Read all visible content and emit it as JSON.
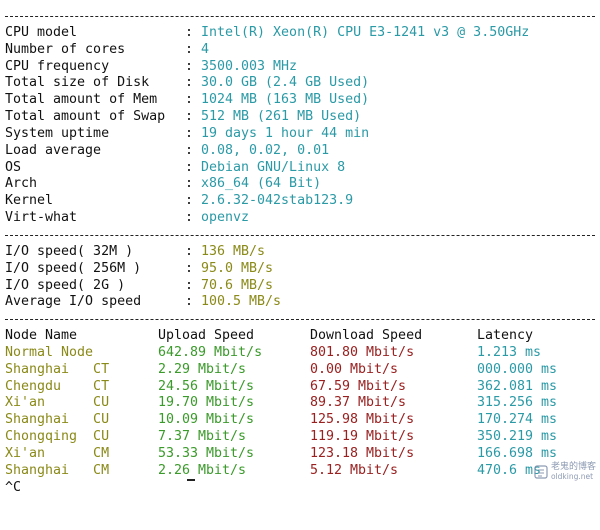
{
  "system_info": [
    {
      "key": "CPU model",
      "value": "Intel(R) Xeon(R) CPU E3-1241 v3 @ 3.50GHz"
    },
    {
      "key": "Number of cores",
      "value": "4"
    },
    {
      "key": "CPU frequency",
      "value": "3500.003 MHz"
    },
    {
      "key": "Total size of Disk",
      "value": "30.0 GB (2.4 GB Used)"
    },
    {
      "key": "Total amount of Mem",
      "value": "1024 MB (163 MB Used)"
    },
    {
      "key": "Total amount of Swap",
      "value": "512 MB (261 MB Used)"
    },
    {
      "key": "System uptime",
      "value": "19 days 1 hour 44 min"
    },
    {
      "key": "Load average",
      "value": "0.08, 0.02, 0.01"
    },
    {
      "key": "OS",
      "value": "Debian GNU/Linux 8"
    },
    {
      "key": "Arch",
      "value": "x86_64 (64 Bit)"
    },
    {
      "key": "Kernel",
      "value": "2.6.32-042stab123.9"
    },
    {
      "key": "Virt-what",
      "value": "openvz"
    }
  ],
  "io_speed": [
    {
      "key": "I/O speed( 32M )",
      "value": "136 MB/s"
    },
    {
      "key": "I/O speed( 256M )",
      "value": "95.0 MB/s"
    },
    {
      "key": "I/O speed( 2G )",
      "value": "70.6 MB/s"
    },
    {
      "key": "Average I/O speed",
      "value": "100.5 MB/s"
    }
  ],
  "speed_table": {
    "headers": [
      "Node Name",
      "Upload Speed",
      "Download Speed",
      "Latency"
    ],
    "rows": [
      {
        "node": "Normal Node",
        "upload": "642.89 Mbit/s",
        "download": "801.80 Mbit/s",
        "latency": "1.213 ms"
      },
      {
        "node": "Shanghai   CT",
        "upload": "2.29 Mbit/s",
        "download": "0.00 Mbit/s",
        "latency": "000.000 ms"
      },
      {
        "node": "Chengdu    CT",
        "upload": "24.56 Mbit/s",
        "download": "67.59 Mbit/s",
        "latency": "362.081 ms"
      },
      {
        "node": "Xi'an      CU",
        "upload": "19.70 Mbit/s",
        "download": "89.37 Mbit/s",
        "latency": "315.256 ms"
      },
      {
        "node": "Shanghai   CU",
        "upload": "10.09 Mbit/s",
        "download": "125.98 Mbit/s",
        "latency": "170.274 ms"
      },
      {
        "node": "Chongqing  CU",
        "upload": "7.37 Mbit/s",
        "download": "119.19 Mbit/s",
        "latency": "350.219 ms"
      },
      {
        "node": "Xi'an      CM",
        "upload": "53.33 Mbit/s",
        "download": "123.18 Mbit/s",
        "latency": "166.698 ms"
      },
      {
        "node": "Shanghai   CM",
        "upload": "2.26 Mbit/s",
        "download": "5.12 Mbit/s",
        "latency": "470.6 ms"
      }
    ]
  },
  "prompt_line": "^C",
  "watermark": {
    "text_cn": "老鬼的博客",
    "url": "oldking.net"
  },
  "colors": {
    "value": "#2a9aa6",
    "io_value": "#8a8a18",
    "node": "#8a8a18",
    "upload": "#3a9a2a",
    "download": "#9a2020",
    "latency": "#2a9aa6"
  }
}
